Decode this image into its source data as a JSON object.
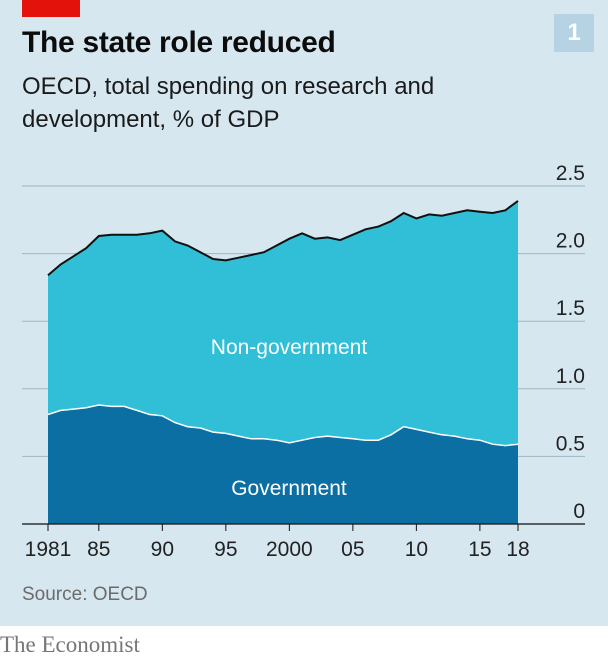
{
  "header": {
    "title": "The state role reduced",
    "subtitle": "OECD, total spending on research and development, % of GDP",
    "chart_number": "1"
  },
  "footer": {
    "source": "Source: OECD",
    "brand": "The Economist"
  },
  "colors": {
    "background": "#d6e7f0",
    "government": "#0b6fa3",
    "non_government": "#30bfd6",
    "total_line": "#111111",
    "accent_red": "#e3120b"
  },
  "chart_data": {
    "type": "area",
    "stacked": true,
    "x": [
      1981,
      1982,
      1983,
      1984,
      1985,
      1986,
      1987,
      1988,
      1989,
      1990,
      1991,
      1992,
      1993,
      1994,
      1995,
      1996,
      1997,
      1998,
      1999,
      2000,
      2001,
      2002,
      2003,
      2004,
      2005,
      2006,
      2007,
      2008,
      2009,
      2010,
      2011,
      2012,
      2013,
      2014,
      2015,
      2016,
      2017,
      2018
    ],
    "series": [
      {
        "name": "Government",
        "values": [
          0.81,
          0.84,
          0.85,
          0.86,
          0.88,
          0.87,
          0.87,
          0.84,
          0.81,
          0.8,
          0.75,
          0.72,
          0.71,
          0.68,
          0.67,
          0.65,
          0.63,
          0.63,
          0.62,
          0.6,
          0.62,
          0.64,
          0.65,
          0.64,
          0.63,
          0.62,
          0.62,
          0.66,
          0.72,
          0.7,
          0.68,
          0.66,
          0.65,
          0.63,
          0.62,
          0.59,
          0.58,
          0.59
        ]
      },
      {
        "name": "Non-government",
        "values": [
          1.03,
          1.08,
          1.13,
          1.18,
          1.25,
          1.27,
          1.27,
          1.3,
          1.34,
          1.37,
          1.34,
          1.34,
          1.3,
          1.28,
          1.28,
          1.32,
          1.36,
          1.38,
          1.44,
          1.51,
          1.53,
          1.47,
          1.47,
          1.46,
          1.51,
          1.56,
          1.58,
          1.58,
          1.58,
          1.56,
          1.61,
          1.62,
          1.65,
          1.69,
          1.69,
          1.71,
          1.74,
          1.8
        ]
      }
    ],
    "series_labels": [
      "Government",
      "Non-government"
    ],
    "x_tick_labels": [
      "1981",
      "85",
      "90",
      "95",
      "2000",
      "05",
      "10",
      "15",
      "18"
    ],
    "x_tick_values": [
      1981,
      1985,
      1990,
      1995,
      2000,
      2005,
      2010,
      2015,
      2018
    ],
    "y_ticks": [
      0,
      0.5,
      1.0,
      1.5,
      2.0,
      2.5
    ],
    "y_tick_labels": [
      "0",
      "0.5",
      "1.0",
      "1.5",
      "2.0",
      "2.5"
    ],
    "ylim": [
      0,
      2.5
    ],
    "xlim": [
      1981,
      2018
    ],
    "grid": true,
    "y_axis_side": "right"
  }
}
